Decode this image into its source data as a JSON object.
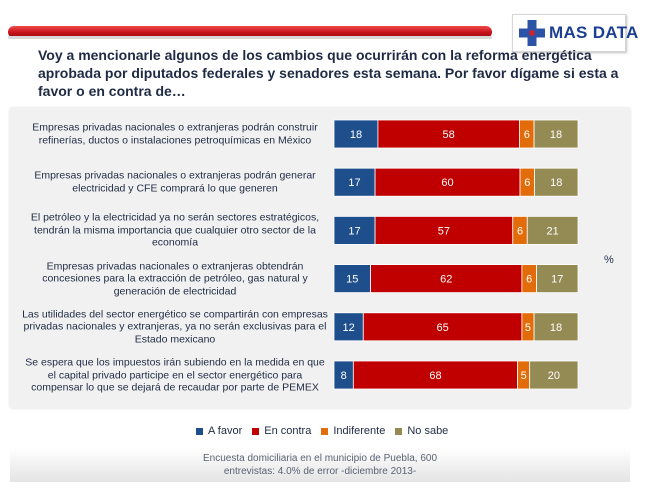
{
  "brand": {
    "name": "MAS DATA",
    "cross_color": "#2b53a8",
    "cross_accent": "#d42027"
  },
  "question": "Voy a mencionarle algunos de los cambios que ocurrirán con la reforma energética aprobada por diputados federales y senadores esta semana. Por favor dígame si esta a favor o en contra de…",
  "chart_data": {
    "type": "bar",
    "orientation": "horizontal",
    "stacked": true,
    "unit": "%",
    "categories": [
      "Empresas privadas nacionales o extranjeras podrán construir refinerías, ductos o instalaciones petroquímicas en México",
      "Empresas privadas nacionales o extranjeras podrán generar electricidad y CFE comprará lo que generen",
      "El petróleo y la electricidad ya no serán sectores estratégicos, tendrán la misma importancia que cualquier otro sector de la economía",
      "Empresas privadas nacionales o extranjeras obtendrán concesiones para la extracción de petróleo, gas natural y generación de electricidad",
      "Las utilidades del sector energético se compartirán con empresas privadas nacionales y extranjeras, ya no serán exclusivas para el Estado mexicano",
      "Se espera que los impuestos irán subiendo en la medida en que el capital privado participe en el sector energético para compensar lo que se dejará de recaudar por parte de PEMEX"
    ],
    "series": [
      {
        "name": "A favor",
        "color": "#1f4e8c",
        "values": [
          18,
          17,
          17,
          15,
          12,
          8
        ]
      },
      {
        "name": "En contra",
        "color": "#c00000",
        "values": [
          58,
          60,
          57,
          62,
          65,
          68
        ]
      },
      {
        "name": "Indiferente",
        "color": "#e36c0a",
        "values": [
          6,
          6,
          6,
          6,
          5,
          5
        ]
      },
      {
        "name": "No sabe",
        "color": "#948a54",
        "values": [
          18,
          18,
          21,
          17,
          18,
          20
        ]
      }
    ],
    "legend_position": "bottom"
  },
  "footer": {
    "line1": "Encuesta domiciliaria en el municipio de Puebla, 600",
    "line2": "entrevistas: 4.0% de error -diciembre 2013-"
  }
}
